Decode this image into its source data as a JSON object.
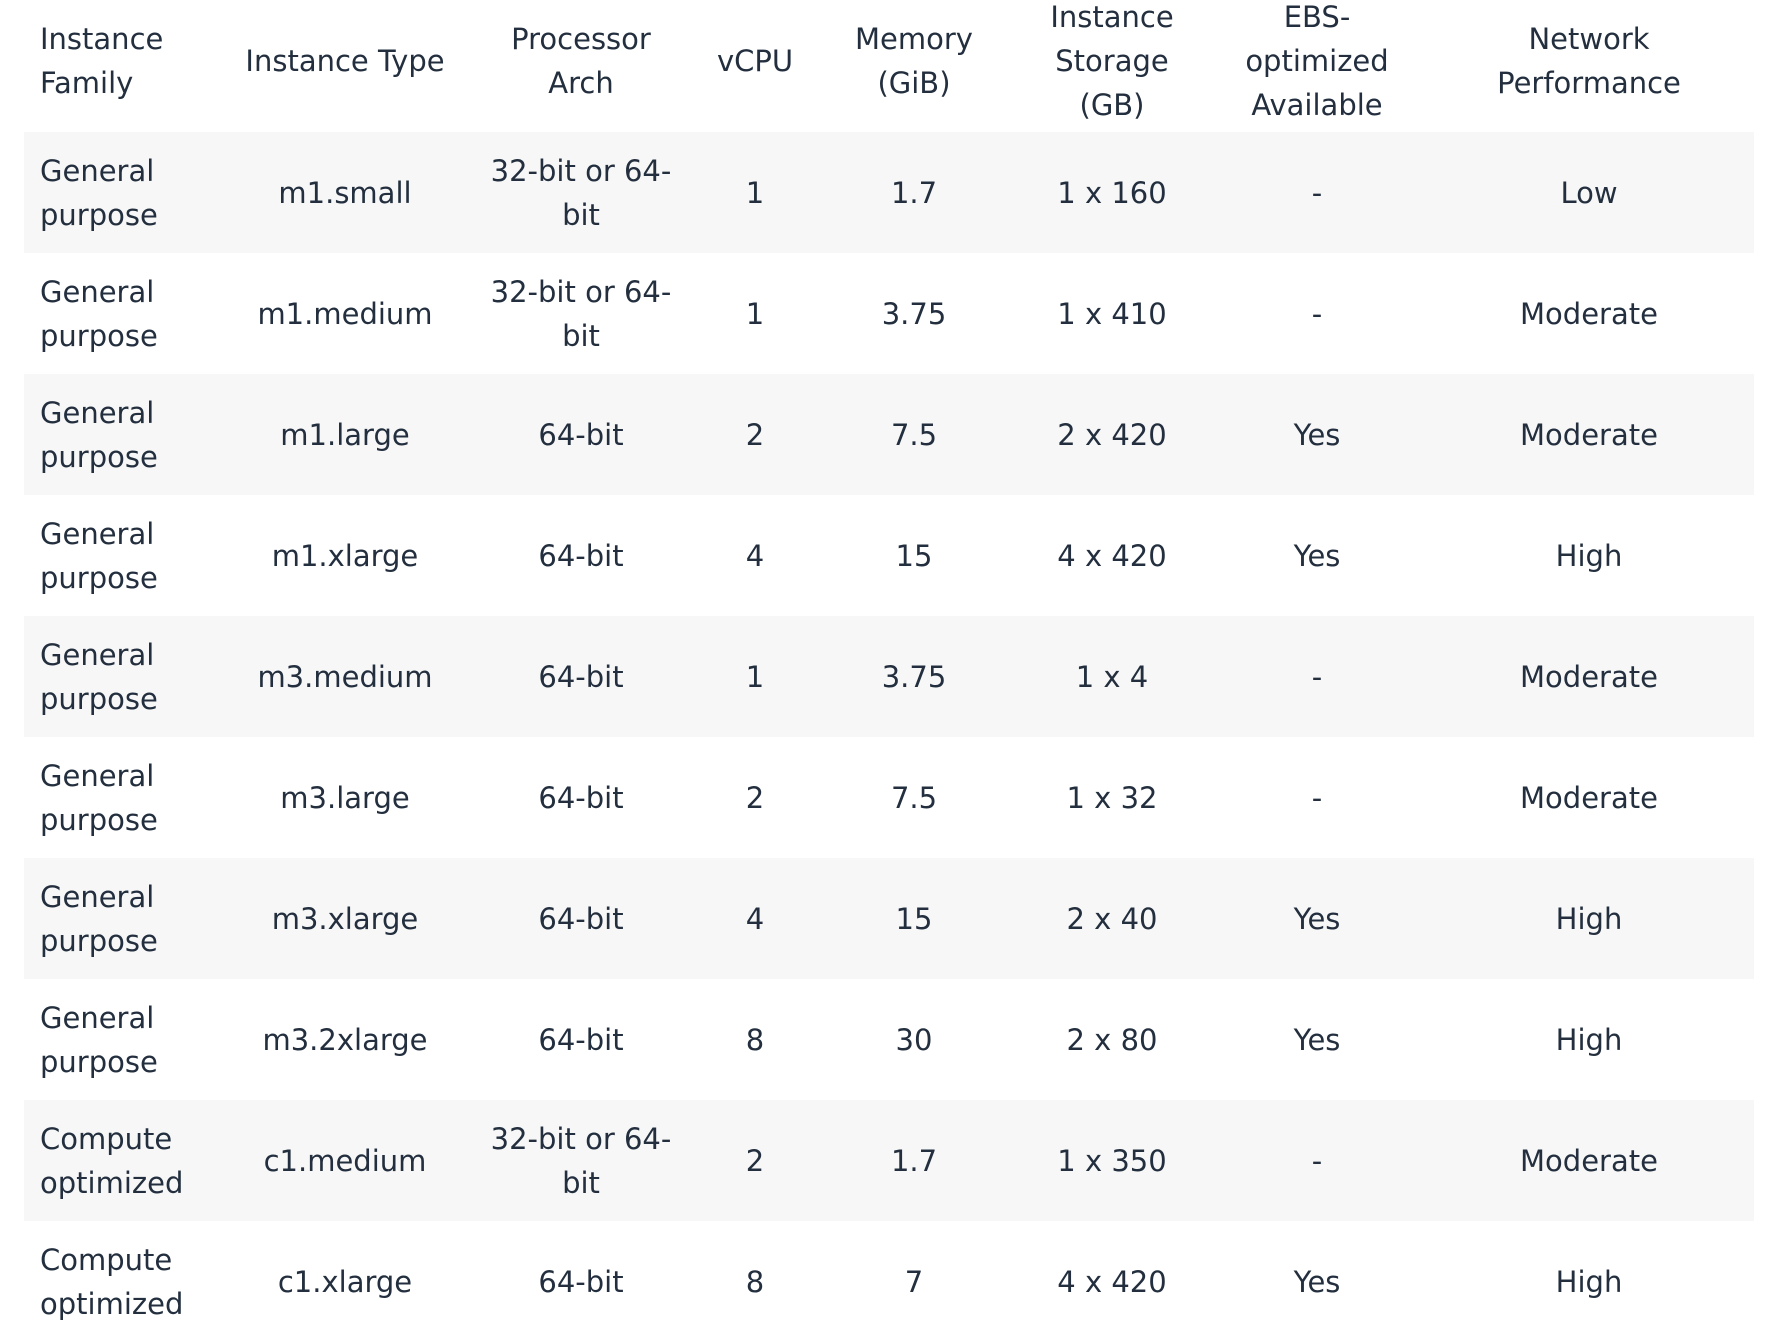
{
  "table": {
    "headers": [
      "Instance Family",
      "Instance Type",
      "Processor Arch",
      "vCPU",
      "Memory (GiB)",
      "Instance Storage (GB)",
      "EBS-optimized Available",
      "Network Performance"
    ],
    "rows": [
      [
        "General purpose",
        "m1.small",
        "32-bit or 64-bit",
        "1",
        "1.7",
        "1 x 160",
        "-",
        "Low"
      ],
      [
        "General purpose",
        "m1.medium",
        "32-bit or 64-bit",
        "1",
        "3.75",
        "1 x 410",
        "-",
        "Moderate"
      ],
      [
        "General purpose",
        "m1.large",
        "64-bit",
        "2",
        "7.5",
        "2 x 420",
        "Yes",
        "Moderate"
      ],
      [
        "General purpose",
        "m1.xlarge",
        "64-bit",
        "4",
        "15",
        "4 x 420",
        "Yes",
        "High"
      ],
      [
        "General purpose",
        "m3.medium",
        "64-bit",
        "1",
        "3.75",
        "1 x 4",
        "-",
        "Moderate"
      ],
      [
        "General purpose",
        "m3.large",
        "64-bit",
        "2",
        "7.5",
        "1 x 32",
        "-",
        "Moderate"
      ],
      [
        "General purpose",
        "m3.xlarge",
        "64-bit",
        "4",
        "15",
        "2 x 40",
        "Yes",
        "High"
      ],
      [
        "General purpose",
        "m3.2xlarge",
        "64-bit",
        "8",
        "30",
        "2 x 80",
        "Yes",
        "High"
      ],
      [
        "Compute optimized",
        "c1.medium",
        "32-bit or 64-bit",
        "2",
        "1.7",
        "1 x 350",
        "-",
        "Moderate"
      ],
      [
        "Compute optimized",
        "c1.xlarge",
        "64-bit",
        "8",
        "7",
        "4 x 420",
        "Yes",
        "High"
      ]
    ]
  }
}
